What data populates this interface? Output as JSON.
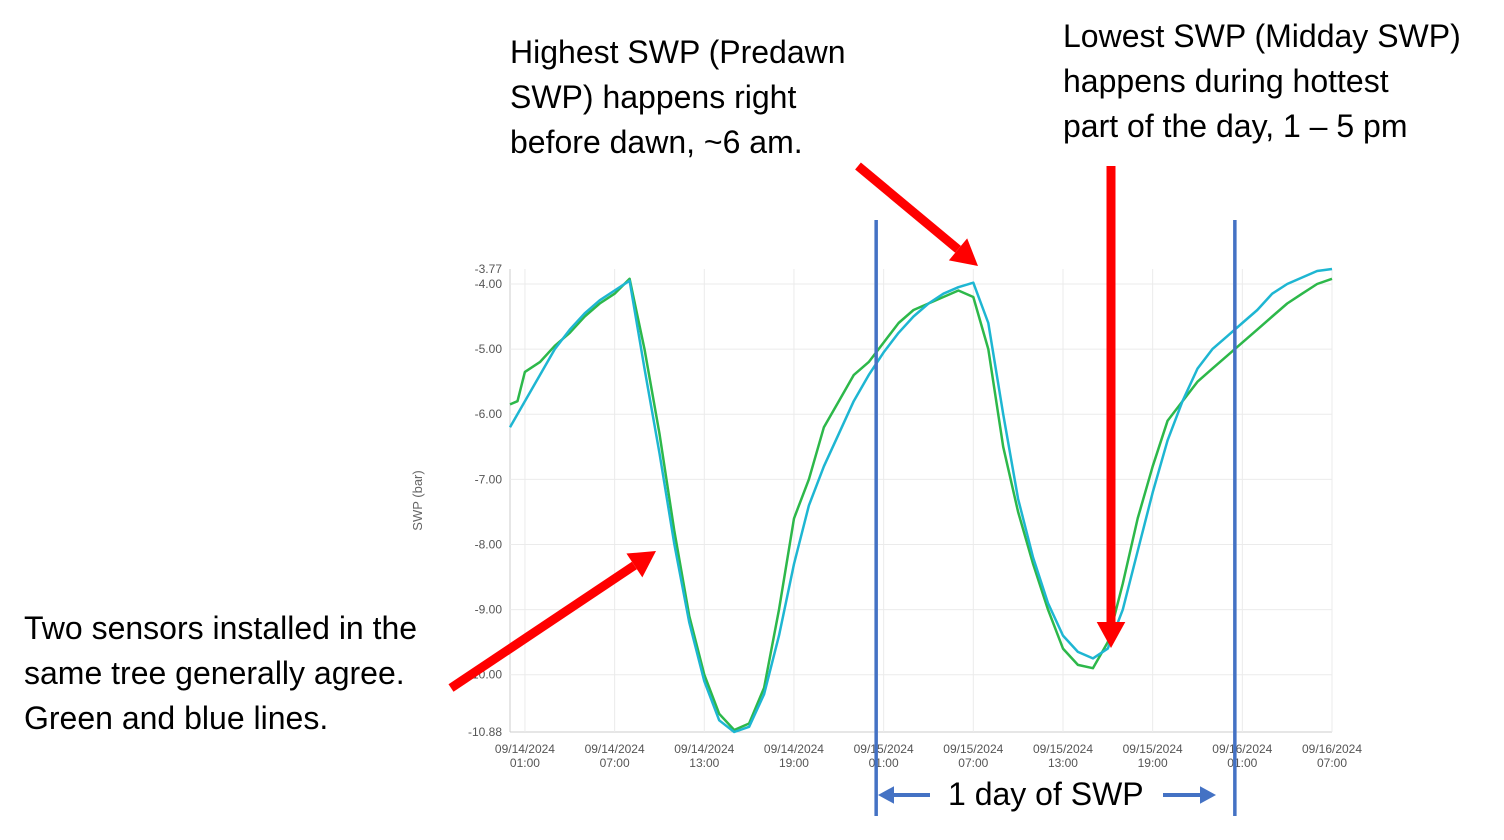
{
  "annotations": {
    "predawn": "Highest SWP (Predawn\nSWP) happens right\nbefore dawn, ~6 am.",
    "midday": "Lowest SWP (Midday SWP)\nhappens during hottest\npart of the day, 1 – 5 pm",
    "sensors": "Two sensors installed in the\nsame tree generally agree.\nGreen and blue lines.",
    "day": "1 day of SWP"
  },
  "colors": {
    "green_series": "#2db84a",
    "blue_series": "#1eb6d2",
    "day_lines": "#4472c4",
    "arrows": "#ff0000"
  },
  "chart_data": {
    "type": "line",
    "ylabel": "SWP (bar)",
    "xlabel": "",
    "ylim": [
      -10.88,
      -3.77
    ],
    "y_ticks": [
      "-3.77",
      "-4.00",
      "-5.00",
      "-6.00",
      "-7.00",
      "-8.00",
      "-9.00",
      "-10.00",
      "-10.88"
    ],
    "x_range_hours": [
      0,
      55
    ],
    "x_ticks": [
      {
        "date": "09/14/2024",
        "time": "01:00",
        "hour": 1
      },
      {
        "date": "09/14/2024",
        "time": "07:00",
        "hour": 7
      },
      {
        "date": "09/14/2024",
        "time": "13:00",
        "hour": 13
      },
      {
        "date": "09/14/2024",
        "time": "19:00",
        "hour": 19
      },
      {
        "date": "09/15/2024",
        "time": "01:00",
        "hour": 25
      },
      {
        "date": "09/15/2024",
        "time": "07:00",
        "hour": 31
      },
      {
        "date": "09/15/2024",
        "time": "13:00",
        "hour": 37
      },
      {
        "date": "09/15/2024",
        "time": "19:00",
        "hour": 43
      },
      {
        "date": "09/16/2024",
        "time": "01:00",
        "hour": 49
      },
      {
        "date": "09/16/2024",
        "time": "07:00",
        "hour": 55
      }
    ],
    "day_markers_hours": [
      24.5,
      48.5
    ],
    "series": [
      {
        "x": [
          0,
          0.5,
          1,
          2,
          3,
          4,
          5,
          6,
          7,
          8,
          9,
          10,
          11,
          12,
          13,
          14,
          15,
          16,
          17,
          18,
          19,
          20,
          21,
          22,
          23,
          24,
          25,
          26,
          27,
          28,
          29,
          30,
          31,
          32,
          33,
          34,
          35,
          36,
          37,
          38,
          39,
          40,
          41,
          42,
          43,
          44,
          45,
          46,
          47,
          48,
          49,
          50,
          51,
          52,
          53,
          54,
          55
        ],
        "values": [
          -5.85,
          -5.8,
          -5.35,
          -5.2,
          -4.95,
          -4.75,
          -4.5,
          -4.3,
          -4.15,
          -3.92,
          -5.0,
          -6.3,
          -7.8,
          -9.1,
          -10.0,
          -10.6,
          -10.85,
          -10.75,
          -10.2,
          -9.0,
          -7.6,
          -7.0,
          -6.2,
          -5.8,
          -5.4,
          -5.2,
          -4.9,
          -4.6,
          -4.4,
          -4.3,
          -4.2,
          -4.1,
          -4.2,
          -5.0,
          -6.5,
          -7.5,
          -8.3,
          -9.0,
          -9.6,
          -9.85,
          -9.9,
          -9.5,
          -8.6,
          -7.6,
          -6.8,
          -6.1,
          -5.8,
          -5.5,
          -5.3,
          -5.1,
          -4.9,
          -4.7,
          -4.5,
          -4.3,
          -4.15,
          -4.0,
          -3.92
        ],
        "xlabel_unit": "hours since 09/14/2024 00:00"
      },
      {
        "x": [
          0,
          1,
          2,
          3,
          4,
          5,
          6,
          7,
          8,
          9,
          10,
          11,
          12,
          13,
          14,
          15,
          16,
          17,
          18,
          19,
          20,
          21,
          22,
          23,
          24,
          25,
          26,
          27,
          28,
          29,
          30,
          31,
          32,
          33,
          34,
          35,
          36,
          37,
          38,
          39,
          40,
          41,
          42,
          43,
          44,
          45,
          46,
          47,
          48,
          49,
          50,
          51,
          52,
          53,
          54,
          55
        ],
        "values": [
          -6.2,
          -5.8,
          -5.4,
          -5.0,
          -4.7,
          -4.45,
          -4.25,
          -4.1,
          -3.95,
          -5.3,
          -6.6,
          -8.0,
          -9.2,
          -10.1,
          -10.7,
          -10.88,
          -10.8,
          -10.3,
          -9.4,
          -8.3,
          -7.4,
          -6.8,
          -6.3,
          -5.8,
          -5.4,
          -5.05,
          -4.75,
          -4.5,
          -4.3,
          -4.15,
          -4.05,
          -3.98,
          -4.6,
          -6.0,
          -7.3,
          -8.2,
          -8.9,
          -9.4,
          -9.65,
          -9.75,
          -9.6,
          -9.0,
          -8.1,
          -7.2,
          -6.4,
          -5.8,
          -5.3,
          -5.0,
          -4.8,
          -4.6,
          -4.4,
          -4.15,
          -4.0,
          -3.9,
          -3.8,
          -3.77
        ]
      }
    ]
  }
}
